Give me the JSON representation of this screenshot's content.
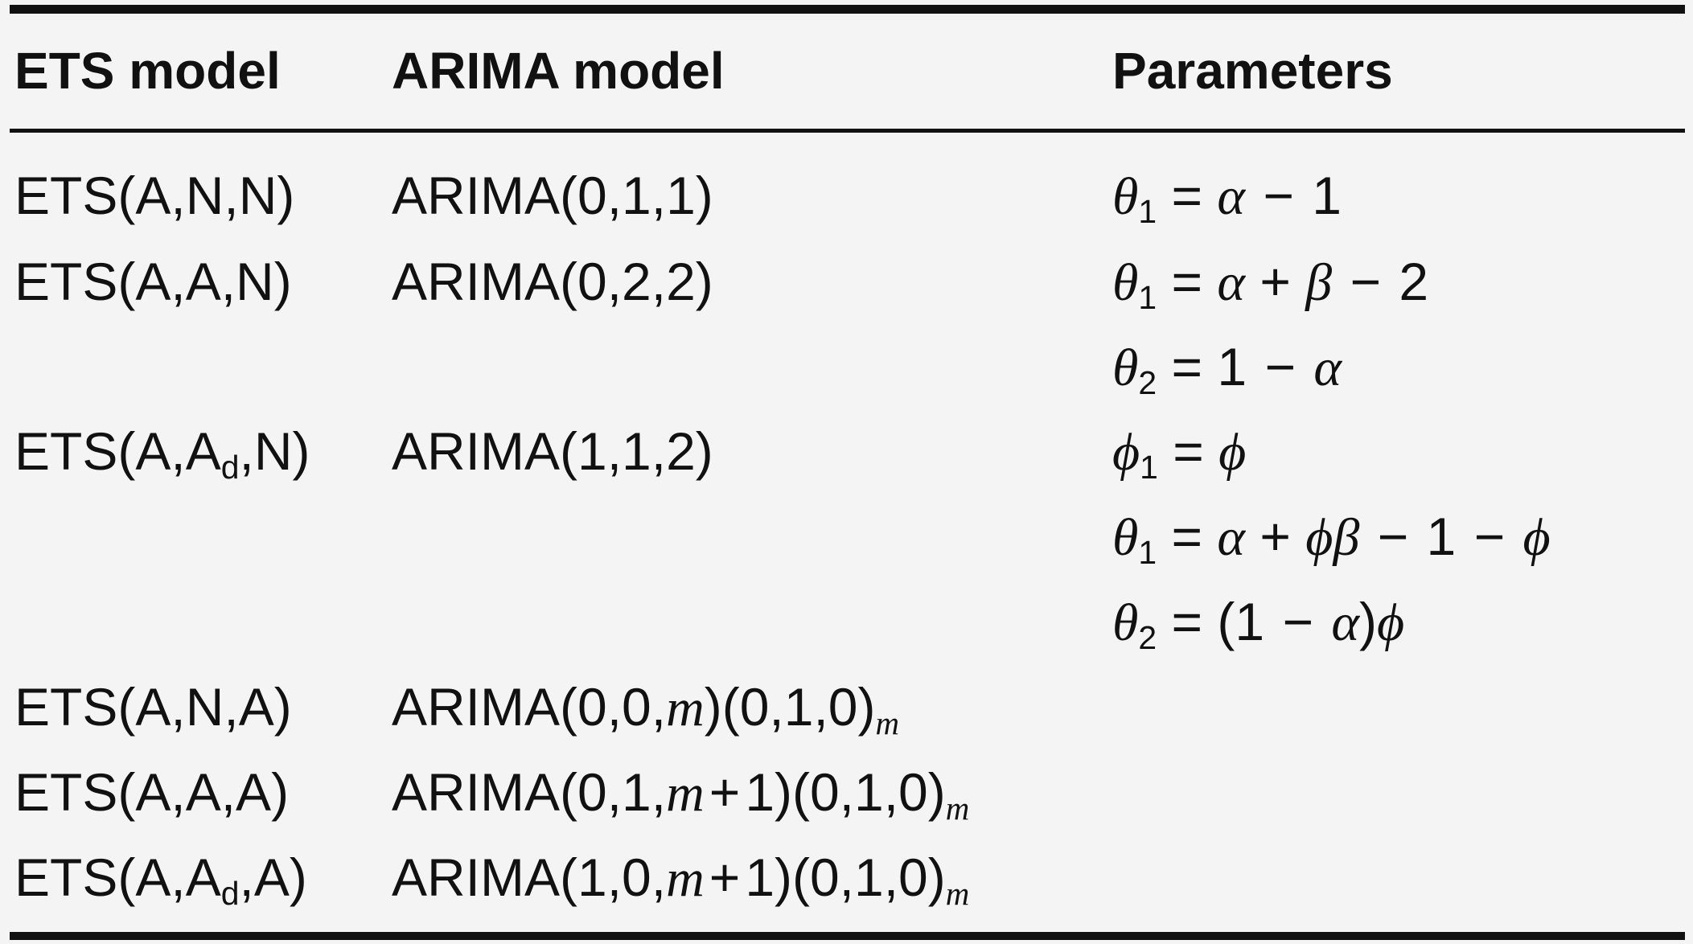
{
  "table": {
    "headers": [
      "ETS model",
      "ARIMA model",
      "Parameters"
    ],
    "rows": [
      {
        "ets": "ETS(A,N,N)",
        "arima": "ARIMA(0,1,1)",
        "params": [
          "θ1 = α − 1"
        ]
      },
      {
        "ets": "ETS(A,A,N)",
        "arima": "ARIMA(0,2,2)",
        "params": [
          "θ1 = α + β − 2",
          "θ2 = 1 − α"
        ]
      },
      {
        "ets": "ETS(A,Ad,N)",
        "arima": "ARIMA(1,1,2)",
        "params": [
          "ϕ1 = ϕ",
          "θ1 = α + ϕβ − 1 − ϕ",
          "θ2 = (1 − α)ϕ"
        ]
      },
      {
        "ets": "ETS(A,N,A)",
        "arima": "ARIMA(0,0,m)(0,1,0)m",
        "params": []
      },
      {
        "ets": "ETS(A,A,A)",
        "arima": "ARIMA(0,1,m+1)(0,1,0)m",
        "params": []
      },
      {
        "ets": "ETS(A,Ad,A)",
        "arima": "ARIMA(1,0,m+1)(0,1,0)m",
        "params": []
      }
    ]
  }
}
